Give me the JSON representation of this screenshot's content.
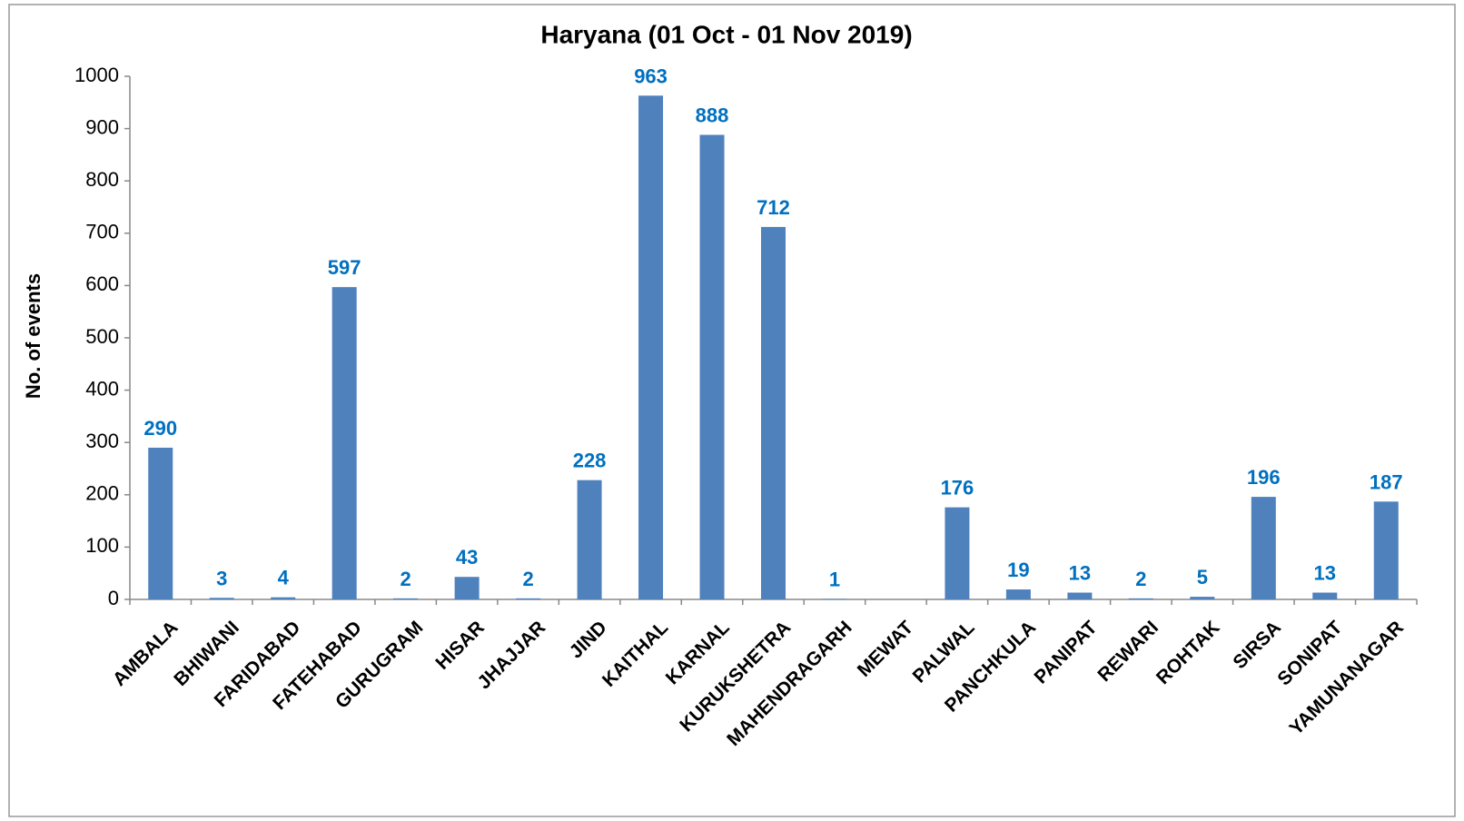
{
  "chart_data": {
    "type": "bar",
    "title": "Haryana (01 Oct - 01 Nov 2019)",
    "y_label": "No. of events",
    "categories": [
      "AMBALA",
      "BHIWANI",
      "FARIDABAD",
      "FATEHABAD",
      "GURUGRAM",
      "HISAR",
      "JHAJJAR",
      "JIND",
      "KAITHAL",
      "KARNAL",
      "KURUKSHETRA",
      "MAHENDRAGARH",
      "MEWAT",
      "PALWAL",
      "PANCHKULA",
      "PANIPAT",
      "REWARI",
      "ROHTAK",
      "SIRSA",
      "SONIPAT",
      "YAMUNANAGAR"
    ],
    "values": [
      290,
      3,
      4,
      597,
      2,
      43,
      2,
      228,
      963,
      888,
      712,
      1,
      null,
      176,
      19,
      13,
      2,
      5,
      196,
      13,
      187
    ],
    "color": "#4f81bd",
    "label_color": "#0070c0",
    "ylim": [
      0,
      1000
    ],
    "yticks": [
      0,
      100,
      200,
      300,
      400,
      500,
      600,
      700,
      800,
      900,
      1000
    ],
    "grid": false
  }
}
